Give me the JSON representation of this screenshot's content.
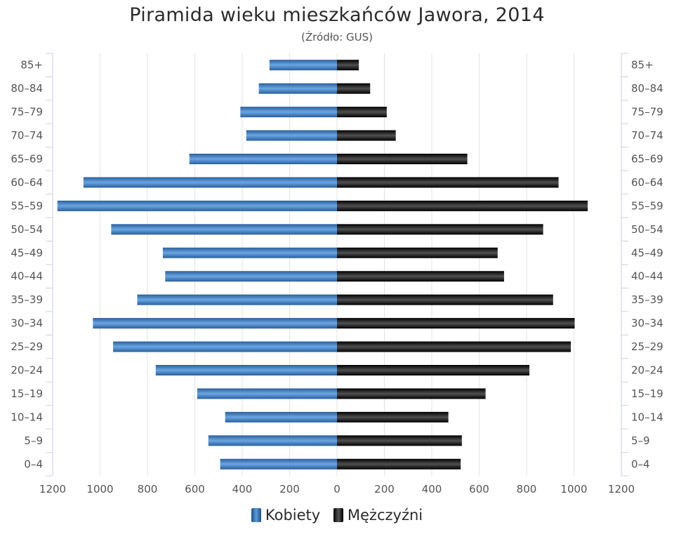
{
  "chart_data": {
    "type": "bar",
    "orientation": "horizontal-pyramid",
    "title": "Piramida wieku mieszkańców Jawora, 2014",
    "subtitle": "(Źródło: GUS)",
    "categories": [
      "85+",
      "80–84",
      "75–79",
      "70–74",
      "65–69",
      "60–64",
      "55–59",
      "50–54",
      "45–49",
      "40–44",
      "35–39",
      "30–34",
      "25–29",
      "20–24",
      "15–19",
      "10–14",
      "5–9",
      "0–4"
    ],
    "series": [
      {
        "name": "Kobiety",
        "values": [
          285,
          330,
          408,
          383,
          623,
          1070,
          1180,
          953,
          735,
          725,
          843,
          1030,
          945,
          765,
          590,
          472,
          543,
          493
        ]
      },
      {
        "name": "Mężczyźni",
        "values": [
          92,
          140,
          210,
          248,
          550,
          935,
          1058,
          870,
          678,
          705,
          912,
          1003,
          987,
          812,
          627,
          470,
          527,
          522
        ]
      }
    ],
    "xlim": [
      -1200,
      1200
    ],
    "xticks": [
      -1200,
      -1000,
      -800,
      -600,
      -400,
      -200,
      0,
      200,
      400,
      600,
      800,
      1000,
      1200
    ],
    "xtick_labels": [
      "1200",
      "1000",
      "800",
      "600",
      "400",
      "200",
      "0",
      "200",
      "400",
      "600",
      "800",
      "1000",
      "1200"
    ],
    "grid": true,
    "legend_position": "bottom",
    "colors": {
      "female": "#3a74b4",
      "male": "#1a1a1a"
    }
  }
}
